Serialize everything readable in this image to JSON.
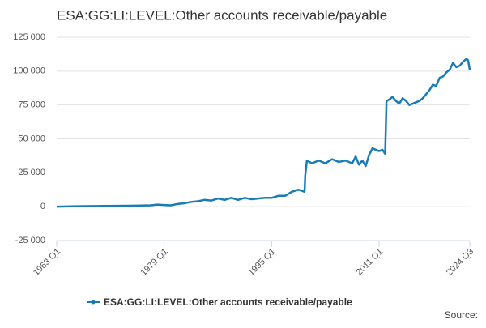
{
  "chart_data": {
    "type": "line",
    "title": "ESA:GG:LI:LEVEL:Other accounts receivable/payable",
    "source": "Source:",
    "x": [
      1963,
      1966,
      1969,
      1972,
      1975,
      1977,
      1978,
      1979,
      1980,
      1981,
      1982,
      1983,
      1984,
      1985,
      1986,
      1987,
      1988,
      1989,
      1990,
      1991,
      1992,
      1993,
      1994,
      1995,
      1996,
      1997,
      1997.5,
      1998,
      1999,
      1999.9,
      2000,
      2000.25,
      2001,
      2002,
      2003,
      2004,
      2005,
      2006,
      2007,
      2007.5,
      2008,
      2008.5,
      2009,
      2009.5,
      2010,
      2010.5,
      2011,
      2011.5,
      2011.9,
      2012.1,
      2012.5,
      2013,
      2013.5,
      2014,
      2014.5,
      2015,
      2015.5,
      2016,
      2016.5,
      2017,
      2017.5,
      2018,
      2018.5,
      2019,
      2019.5,
      2020,
      2020.5,
      2021,
      2021.5,
      2022,
      2022.5,
      2023,
      2023.5,
      2024,
      2024.25,
      2024.5
    ],
    "series": [
      {
        "name": "ESA:GG:LI:LEVEL:Other accounts receivable/payable",
        "color": "#1a7cb5",
        "values": [
          0,
          300,
          500,
          600,
          800,
          1000,
          1500,
          1200,
          1000,
          2000,
          2500,
          3500,
          4000,
          5000,
          4500,
          6000,
          5000,
          6500,
          5000,
          6500,
          5500,
          6000,
          6500,
          6500,
          8000,
          8000,
          9500,
          11000,
          12500,
          11000,
          23000,
          34000,
          32000,
          34000,
          32000,
          35000,
          33000,
          34000,
          32000,
          37000,
          31000,
          34000,
          30000,
          38000,
          43000,
          42000,
          41000,
          42000,
          39000,
          78000,
          79000,
          81000,
          78000,
          76000,
          80000,
          78000,
          75000,
          76000,
          77000,
          78000,
          80000,
          83000,
          86000,
          90000,
          89000,
          95000,
          96000,
          99000,
          101000,
          106000,
          103000,
          104000,
          107000,
          109000,
          108000,
          101000
        ]
      }
    ],
    "xlim": [
      1963,
      2024.5
    ],
    "xticks": [
      {
        "value": 1963,
        "label": "1963 Q1"
      },
      {
        "value": 1979,
        "label": "1979 Q1"
      },
      {
        "value": 1995,
        "label": "1995 Q1"
      },
      {
        "value": 2011,
        "label": "2011 Q1"
      },
      {
        "value": 2024.5,
        "label": "2024 Q3"
      }
    ],
    "ylim": [
      -25000,
      125000
    ],
    "yticks": [
      {
        "value": -25000,
        "label": "-25 000"
      },
      0,
      {
        "value": 25000,
        "label": "25 000"
      },
      {
        "value": 50000,
        "label": "50 000"
      },
      {
        "value": 75000,
        "label": "75 000"
      },
      {
        "value": 100000,
        "label": "100 000"
      },
      {
        "value": 125000,
        "label": "125 000"
      }
    ],
    "grid": true
  }
}
